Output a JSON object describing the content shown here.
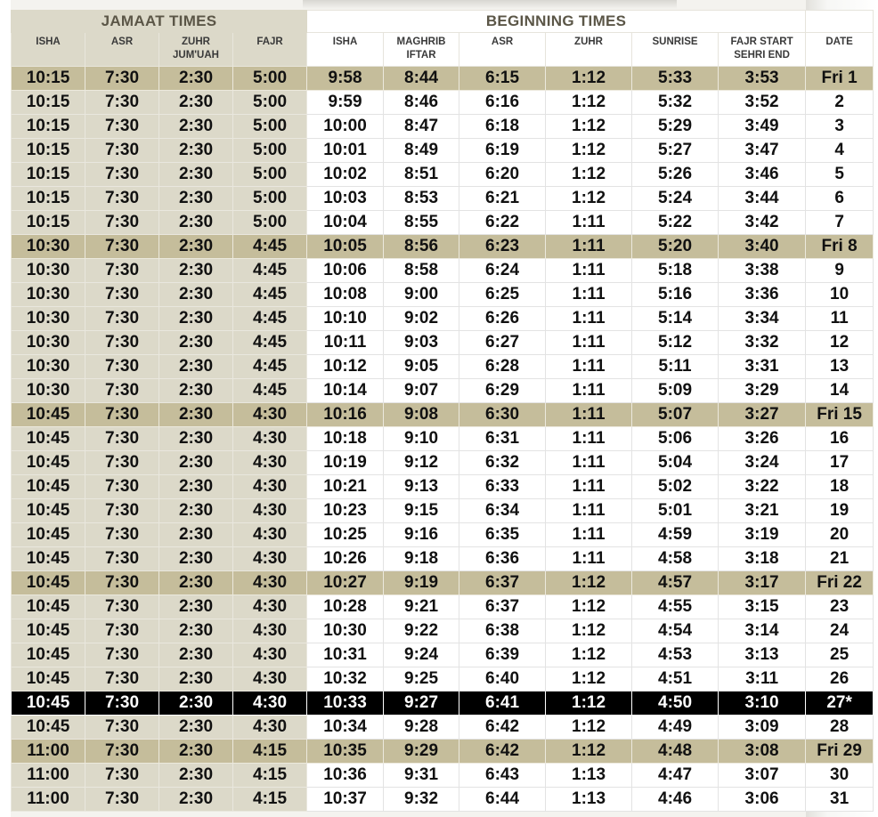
{
  "header": {
    "jamaat_title": "JAMAAT TIMES",
    "beginning_title": "BEGINNING  TIMES",
    "columns": {
      "jamaat_isha": "ISHA",
      "jamaat_asr": "ASR",
      "jamaat_zuhr": [
        "ZUHR",
        "JUM'UAH"
      ],
      "jamaat_fajr": "FAJR",
      "begin_isha": "ISHA",
      "begin_maghrib": [
        "MAGHRIB",
        "IFTAR"
      ],
      "begin_asr": "ASR",
      "begin_zuhr": "ZUHR",
      "begin_sunrise": "SUNRISE",
      "begin_fajr": [
        "FAJR START",
        "SEHRI END"
      ],
      "date": "DATE"
    }
  },
  "colors": {
    "jamaat_bg": "#dcd9c9",
    "friday_bg": "#c5bd9b",
    "highlight_bg": "#000000",
    "header_text": "#5b5647"
  },
  "rows": [
    {
      "jamaat": [
        "10:15",
        "7:30",
        "2:30",
        "5:00"
      ],
      "beginning": [
        "9:58",
        "8:44",
        "6:15",
        "1:12",
        "5:33",
        "3:53"
      ],
      "date": "Fri 1",
      "type": "friday"
    },
    {
      "jamaat": [
        "10:15",
        "7:30",
        "2:30",
        "5:00"
      ],
      "beginning": [
        "9:59",
        "8:46",
        "6:16",
        "1:12",
        "5:32",
        "3:52"
      ],
      "date": "2",
      "type": "normal"
    },
    {
      "jamaat": [
        "10:15",
        "7:30",
        "2:30",
        "5:00"
      ],
      "beginning": [
        "10:00",
        "8:47",
        "6:18",
        "1:12",
        "5:29",
        "3:49"
      ],
      "date": "3",
      "type": "normal"
    },
    {
      "jamaat": [
        "10:15",
        "7:30",
        "2:30",
        "5:00"
      ],
      "beginning": [
        "10:01",
        "8:49",
        "6:19",
        "1:12",
        "5:27",
        "3:47"
      ],
      "date": "4",
      "type": "normal"
    },
    {
      "jamaat": [
        "10:15",
        "7:30",
        "2:30",
        "5:00"
      ],
      "beginning": [
        "10:02",
        "8:51",
        "6:20",
        "1:12",
        "5:26",
        "3:46"
      ],
      "date": "5",
      "type": "normal"
    },
    {
      "jamaat": [
        "10:15",
        "7:30",
        "2:30",
        "5:00"
      ],
      "beginning": [
        "10:03",
        "8:53",
        "6:21",
        "1:12",
        "5:24",
        "3:44"
      ],
      "date": "6",
      "type": "normal"
    },
    {
      "jamaat": [
        "10:15",
        "7:30",
        "2:30",
        "5:00"
      ],
      "beginning": [
        "10:04",
        "8:55",
        "6:22",
        "1:11",
        "5:22",
        "3:42"
      ],
      "date": "7",
      "type": "normal"
    },
    {
      "jamaat": [
        "10:30",
        "7:30",
        "2:30",
        "4:45"
      ],
      "beginning": [
        "10:05",
        "8:56",
        "6:23",
        "1:11",
        "5:20",
        "3:40"
      ],
      "date": "Fri 8",
      "type": "friday"
    },
    {
      "jamaat": [
        "10:30",
        "7:30",
        "2:30",
        "4:45"
      ],
      "beginning": [
        "10:06",
        "8:58",
        "6:24",
        "1:11",
        "5:18",
        "3:38"
      ],
      "date": "9",
      "type": "normal"
    },
    {
      "jamaat": [
        "10:30",
        "7:30",
        "2:30",
        "4:45"
      ],
      "beginning": [
        "10:08",
        "9:00",
        "6:25",
        "1:11",
        "5:16",
        "3:36"
      ],
      "date": "10",
      "type": "normal"
    },
    {
      "jamaat": [
        "10:30",
        "7:30",
        "2:30",
        "4:45"
      ],
      "beginning": [
        "10:10",
        "9:02",
        "6:26",
        "1:11",
        "5:14",
        "3:34"
      ],
      "date": "11",
      "type": "normal"
    },
    {
      "jamaat": [
        "10:30",
        "7:30",
        "2:30",
        "4:45"
      ],
      "beginning": [
        "10:11",
        "9:03",
        "6:27",
        "1:11",
        "5:12",
        "3:32"
      ],
      "date": "12",
      "type": "normal"
    },
    {
      "jamaat": [
        "10:30",
        "7:30",
        "2:30",
        "4:45"
      ],
      "beginning": [
        "10:12",
        "9:05",
        "6:28",
        "1:11",
        "5:11",
        "3:31"
      ],
      "date": "13",
      "type": "normal"
    },
    {
      "jamaat": [
        "10:30",
        "7:30",
        "2:30",
        "4:45"
      ],
      "beginning": [
        "10:14",
        "9:07",
        "6:29",
        "1:11",
        "5:09",
        "3:29"
      ],
      "date": "14",
      "type": "normal"
    },
    {
      "jamaat": [
        "10:45",
        "7:30",
        "2:30",
        "4:30"
      ],
      "beginning": [
        "10:16",
        "9:08",
        "6:30",
        "1:11",
        "5:07",
        "3:27"
      ],
      "date": "Fri 15",
      "type": "friday"
    },
    {
      "jamaat": [
        "10:45",
        "7:30",
        "2:30",
        "4:30"
      ],
      "beginning": [
        "10:18",
        "9:10",
        "6:31",
        "1:11",
        "5:06",
        "3:26"
      ],
      "date": "16",
      "type": "normal"
    },
    {
      "jamaat": [
        "10:45",
        "7:30",
        "2:30",
        "4:30"
      ],
      "beginning": [
        "10:19",
        "9:12",
        "6:32",
        "1:11",
        "5:04",
        "3:24"
      ],
      "date": "17",
      "type": "normal"
    },
    {
      "jamaat": [
        "10:45",
        "7:30",
        "2:30",
        "4:30"
      ],
      "beginning": [
        "10:21",
        "9:13",
        "6:33",
        "1:11",
        "5:02",
        "3:22"
      ],
      "date": "18",
      "type": "normal"
    },
    {
      "jamaat": [
        "10:45",
        "7:30",
        "2:30",
        "4:30"
      ],
      "beginning": [
        "10:23",
        "9:15",
        "6:34",
        "1:11",
        "5:01",
        "3:21"
      ],
      "date": "19",
      "type": "normal"
    },
    {
      "jamaat": [
        "10:45",
        "7:30",
        "2:30",
        "4:30"
      ],
      "beginning": [
        "10:25",
        "9:16",
        "6:35",
        "1:11",
        "4:59",
        "3:19"
      ],
      "date": "20",
      "type": "normal"
    },
    {
      "jamaat": [
        "10:45",
        "7:30",
        "2:30",
        "4:30"
      ],
      "beginning": [
        "10:26",
        "9:18",
        "6:36",
        "1:11",
        "4:58",
        "3:18"
      ],
      "date": "21",
      "type": "normal"
    },
    {
      "jamaat": [
        "10:45",
        "7:30",
        "2:30",
        "4:30"
      ],
      "beginning": [
        "10:27",
        "9:19",
        "6:37",
        "1:12",
        "4:57",
        "3:17"
      ],
      "date": "Fri 22",
      "type": "friday"
    },
    {
      "jamaat": [
        "10:45",
        "7:30",
        "2:30",
        "4:30"
      ],
      "beginning": [
        "10:28",
        "9:21",
        "6:37",
        "1:12",
        "4:55",
        "3:15"
      ],
      "date": "23",
      "type": "normal"
    },
    {
      "jamaat": [
        "10:45",
        "7:30",
        "2:30",
        "4:30"
      ],
      "beginning": [
        "10:30",
        "9:22",
        "6:38",
        "1:12",
        "4:54",
        "3:14"
      ],
      "date": "24",
      "type": "normal"
    },
    {
      "jamaat": [
        "10:45",
        "7:30",
        "2:30",
        "4:30"
      ],
      "beginning": [
        "10:31",
        "9:24",
        "6:39",
        "1:12",
        "4:53",
        "3:13"
      ],
      "date": "25",
      "type": "normal"
    },
    {
      "jamaat": [
        "10:45",
        "7:30",
        "2:30",
        "4:30"
      ],
      "beginning": [
        "10:32",
        "9:25",
        "6:40",
        "1:12",
        "4:51",
        "3:11"
      ],
      "date": "26",
      "type": "normal"
    },
    {
      "jamaat": [
        "10:45",
        "7:30",
        "2:30",
        "4:30"
      ],
      "beginning": [
        "10:33",
        "9:27",
        "6:41",
        "1:12",
        "4:50",
        "3:10"
      ],
      "date": "27*",
      "type": "special"
    },
    {
      "jamaat": [
        "10:45",
        "7:30",
        "2:30",
        "4:30"
      ],
      "beginning": [
        "10:34",
        "9:28",
        "6:42",
        "1:12",
        "4:49",
        "3:09"
      ],
      "date": "28",
      "type": "normal"
    },
    {
      "jamaat": [
        "11:00",
        "7:30",
        "2:30",
        "4:15"
      ],
      "beginning": [
        "10:35",
        "9:29",
        "6:42",
        "1:12",
        "4:48",
        "3:08"
      ],
      "date": "Fri 29",
      "type": "friday"
    },
    {
      "jamaat": [
        "11:00",
        "7:30",
        "2:30",
        "4:15"
      ],
      "beginning": [
        "10:36",
        "9:31",
        "6:43",
        "1:13",
        "4:47",
        "3:07"
      ],
      "date": "30",
      "type": "normal"
    },
    {
      "jamaat": [
        "11:00",
        "7:30",
        "2:30",
        "4:15"
      ],
      "beginning": [
        "10:37",
        "9:32",
        "6:44",
        "1:13",
        "4:46",
        "3:06"
      ],
      "date": "31",
      "type": "normal"
    }
  ]
}
